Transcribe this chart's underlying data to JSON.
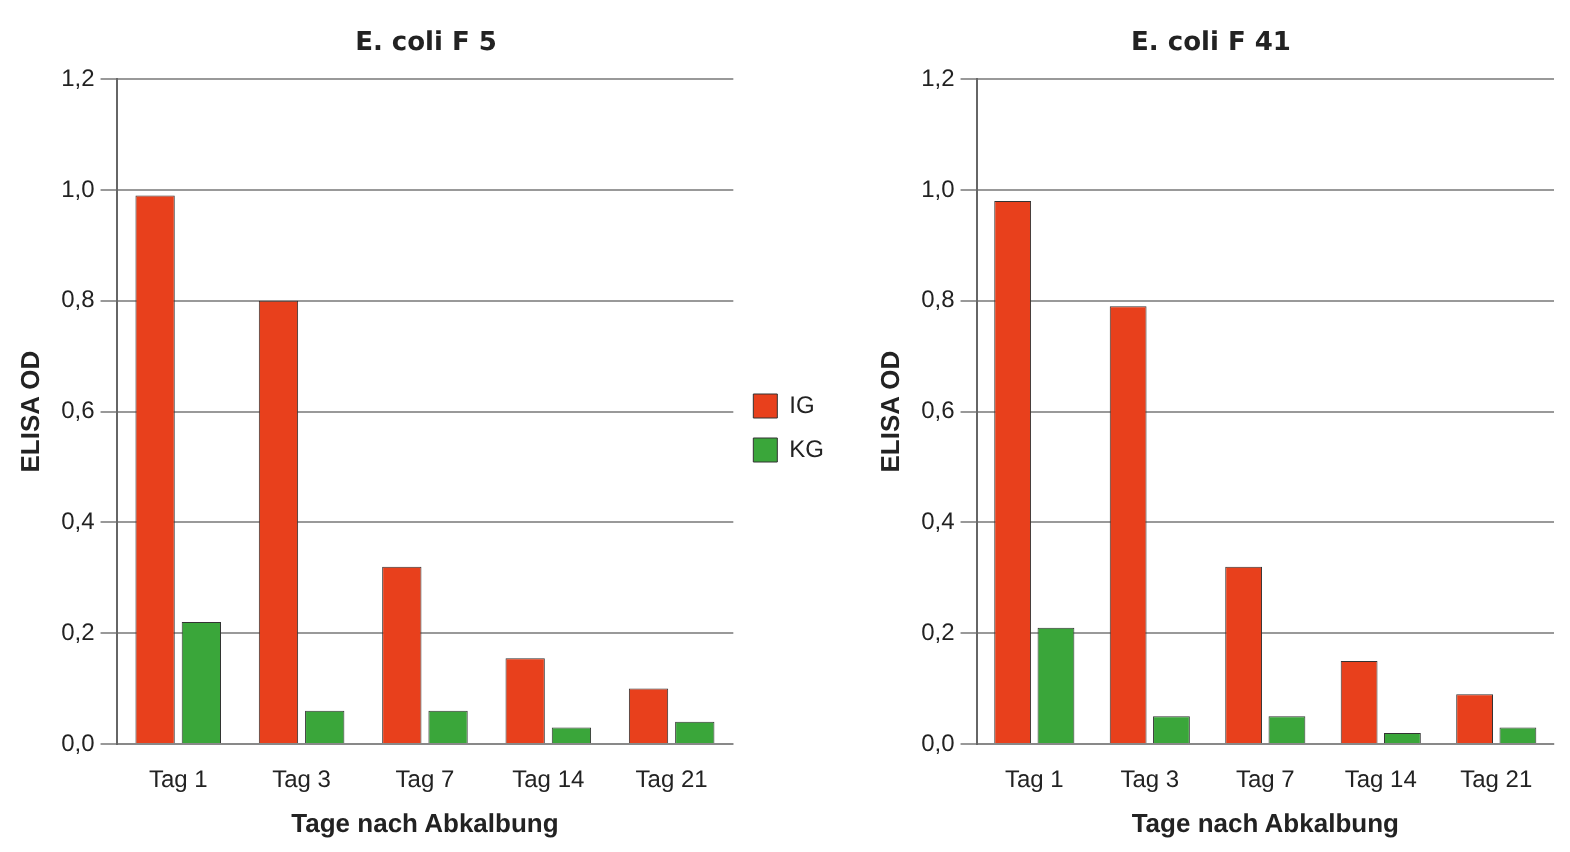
{
  "chart_data": [
    {
      "type": "bar",
      "title": "E. coli F 5",
      "xlabel": "Tage nach Abkalbung",
      "ylabel": "ELISA OD",
      "categories": [
        "Tag 1",
        "Tag 3",
        "Tag 7",
        "Tag 14",
        "Tag 21"
      ],
      "series": [
        {
          "name": "IG",
          "color": "#e8401c",
          "values": [
            0.99,
            0.8,
            0.32,
            0.155,
            0.1
          ]
        },
        {
          "name": "KG",
          "color": "#3aa63a",
          "values": [
            0.22,
            0.06,
            0.06,
            0.03,
            0.04
          ]
        }
      ],
      "ylim": [
        0,
        1.2
      ],
      "yticks": [
        {
          "value": 0,
          "label": "0,0"
        },
        {
          "value": 0.2,
          "label": "0,2"
        },
        {
          "value": 0.4,
          "label": "0,4"
        },
        {
          "value": 0.6,
          "label": "0,6"
        },
        {
          "value": 0.8,
          "label": "0,8"
        },
        {
          "value": 1,
          "label": "1,0"
        },
        {
          "value": 1.2,
          "label": "1,2"
        }
      ],
      "grid": "y",
      "legend": "right"
    },
    {
      "type": "bar",
      "title": "E. coli F 41",
      "xlabel": "Tage nach Abkalbung",
      "ylabel": "ELISA OD",
      "categories": [
        "Tag 1",
        "Tag 3",
        "Tag 7",
        "Tag 14",
        "Tag 21"
      ],
      "series": [
        {
          "color": "#e8401c",
          "values": [
            0.98,
            0.79,
            0.32,
            0.15,
            0.09
          ]
        },
        {
          "color": "#3aa63a",
          "values": [
            0.21,
            0.05,
            0.05,
            0.02,
            0.03
          ]
        }
      ],
      "ylim": [
        0,
        1.2
      ],
      "yticks": [
        {
          "value": 0,
          "label": "0,0"
        },
        {
          "value": 0.2,
          "label": "0,2"
        },
        {
          "value": 0.4,
          "label": "0,4"
        },
        {
          "value": 0.6,
          "label": "0,6"
        },
        {
          "value": 0.8,
          "label": "0,8"
        },
        {
          "value": 1,
          "label": "1,0"
        },
        {
          "value": 1.2,
          "label": "1,2"
        }
      ],
      "grid": "y",
      "legend": false
    }
  ]
}
